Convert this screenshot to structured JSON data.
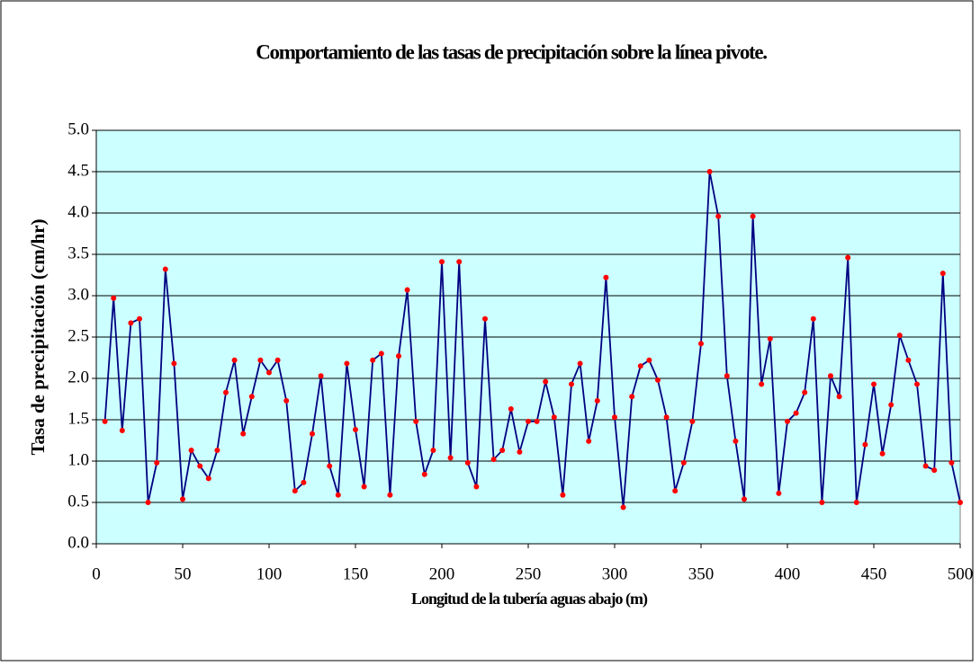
{
  "chart_data": {
    "type": "line",
    "title": "Comportamiento de las tasas de precipitación sobre la línea pivote.",
    "xlabel": "Longitud de la tubería aguas abajo (m)",
    "ylabel": "Tasa de precipitación  (cm/hr)",
    "x": [
      5,
      10,
      15,
      20,
      25,
      30,
      35,
      40,
      45,
      50,
      55,
      60,
      65,
      70,
      75,
      80,
      85,
      90,
      95,
      100,
      105,
      110,
      115,
      120,
      125,
      130,
      135,
      140,
      145,
      150,
      155,
      160,
      165,
      170,
      175,
      180,
      185,
      190,
      195,
      200,
      205,
      210,
      215,
      220,
      225,
      230,
      235,
      240,
      245,
      250,
      255,
      260,
      265,
      270,
      275,
      280,
      285,
      290,
      295,
      300,
      305,
      310,
      315,
      320,
      325,
      330,
      335,
      340,
      345,
      350,
      355,
      360,
      365,
      370,
      375,
      380,
      385,
      390,
      395,
      400,
      405,
      410,
      415,
      420,
      425,
      430,
      435,
      440,
      445,
      450,
      455,
      460,
      465,
      470,
      475,
      480,
      485,
      490,
      495,
      500
    ],
    "series": [
      {
        "name": "Tasa de precipitación",
        "color": "#000080",
        "marker_color": "#ff0000",
        "values": [
          1.48,
          2.97,
          1.37,
          2.67,
          2.72,
          0.5,
          0.98,
          3.32,
          2.18,
          0.54,
          1.13,
          0.94,
          0.79,
          1.13,
          1.83,
          2.22,
          1.33,
          1.78,
          2.22,
          2.07,
          2.22,
          1.73,
          0.64,
          0.74,
          1.33,
          2.03,
          0.94,
          0.59,
          2.18,
          1.38,
          0.69,
          2.22,
          2.3,
          0.59,
          2.27,
          3.07,
          1.48,
          0.84,
          1.13,
          3.41,
          1.04,
          3.41,
          0.98,
          0.69,
          2.72,
          1.02,
          1.13,
          1.63,
          1.11,
          1.48,
          1.48,
          1.96,
          1.53,
          0.59,
          1.93,
          2.18,
          1.24,
          1.73,
          3.22,
          1.53,
          0.44,
          1.78,
          2.15,
          2.22,
          1.98,
          1.53,
          0.64,
          0.98,
          1.48,
          2.42,
          4.5,
          3.96,
          2.03,
          1.24,
          0.54,
          3.96,
          1.93,
          2.48,
          0.61,
          1.48,
          1.58,
          1.83,
          2.72,
          0.5,
          2.03,
          1.78,
          3.46,
          0.5,
          1.2,
          1.93,
          1.09,
          1.68,
          2.52,
          2.22,
          1.93,
          0.94,
          0.89,
          3.27,
          0.98,
          0.5
        ]
      }
    ],
    "xlim": [
      0,
      500
    ],
    "xticks": [
      0,
      50,
      100,
      150,
      200,
      250,
      300,
      350,
      400,
      450,
      500
    ],
    "ylim": [
      0,
      5
    ],
    "yticks": [
      {
        "value": 0,
        "label": "0.0"
      },
      {
        "value": 0.5,
        "label": "0.5"
      },
      {
        "value": 1,
        "label": "1.0"
      },
      {
        "value": 1.5,
        "label": "1.5"
      },
      {
        "value": 2,
        "label": "2.0"
      },
      {
        "value": 2.5,
        "label": "2.5"
      },
      {
        "value": 3,
        "label": "3.0"
      },
      {
        "value": 3.5,
        "label": "3.5"
      },
      {
        "value": 4,
        "label": "4.0"
      },
      {
        "value": 4.5,
        "label": "4.5"
      },
      {
        "value": 5,
        "label": "5.0"
      }
    ],
    "grid": true,
    "background": "#ccffff"
  }
}
